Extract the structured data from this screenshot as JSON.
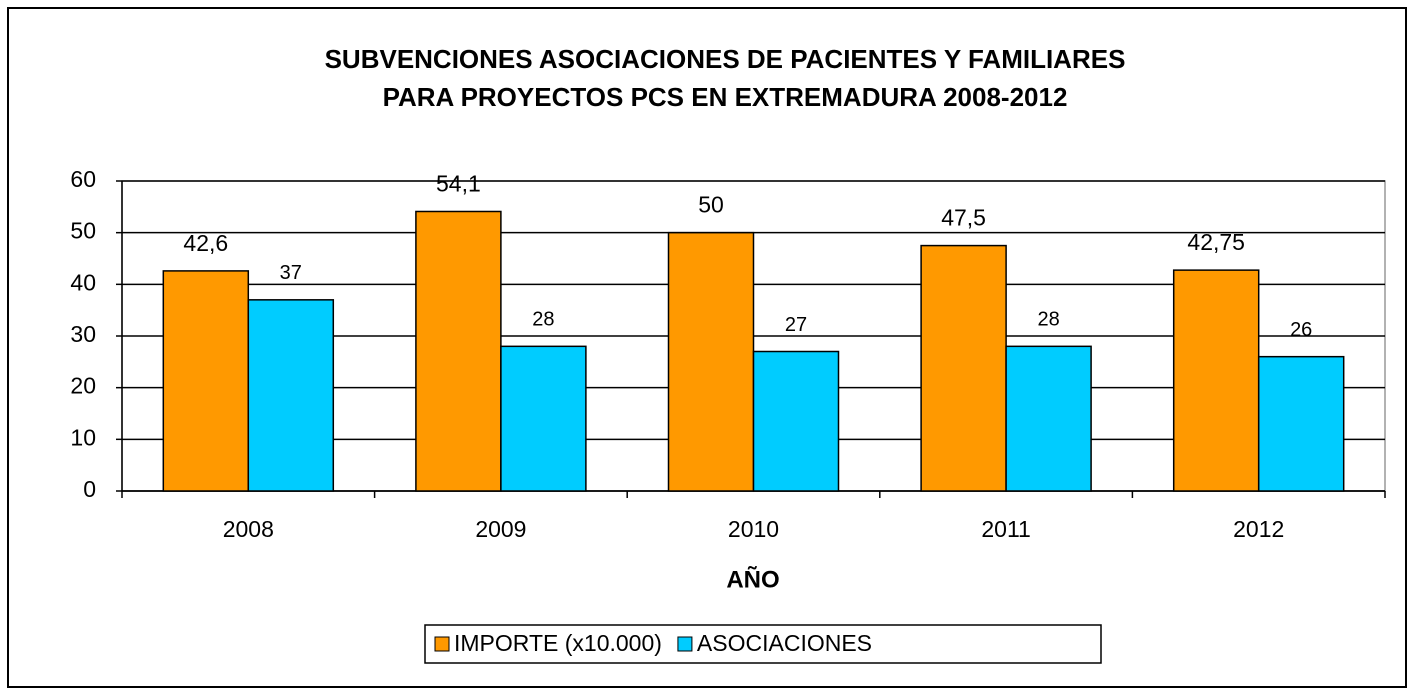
{
  "chart_data": {
    "type": "bar",
    "title": [
      "SUBVENCIONES ASOCIACIONES DE PACIENTES Y FAMILIARES",
      "PARA PROYECTOS PCS EN EXTREMADURA 2008-2012"
    ],
    "x_label": "AÑO",
    "categories": [
      "2008",
      "2009",
      "2010",
      "2011",
      "2012"
    ],
    "series": [
      {
        "name": "IMPORTE (x10.000)",
        "color": "#ff9900",
        "values": [
          42.6,
          54.1,
          50,
          47.5,
          42.75
        ],
        "value_labels": [
          "42,6",
          "54,1",
          "50",
          "47,5",
          "42,75"
        ]
      },
      {
        "name": "ASOCIACIONES",
        "color": "#00ccff",
        "values": [
          37,
          28,
          27,
          28,
          26
        ]
      }
    ],
    "ylim": [
      0,
      60
    ],
    "yticks": [
      0,
      10,
      20,
      30,
      40,
      50,
      60
    ],
    "grid": true,
    "legend": "bottom"
  }
}
